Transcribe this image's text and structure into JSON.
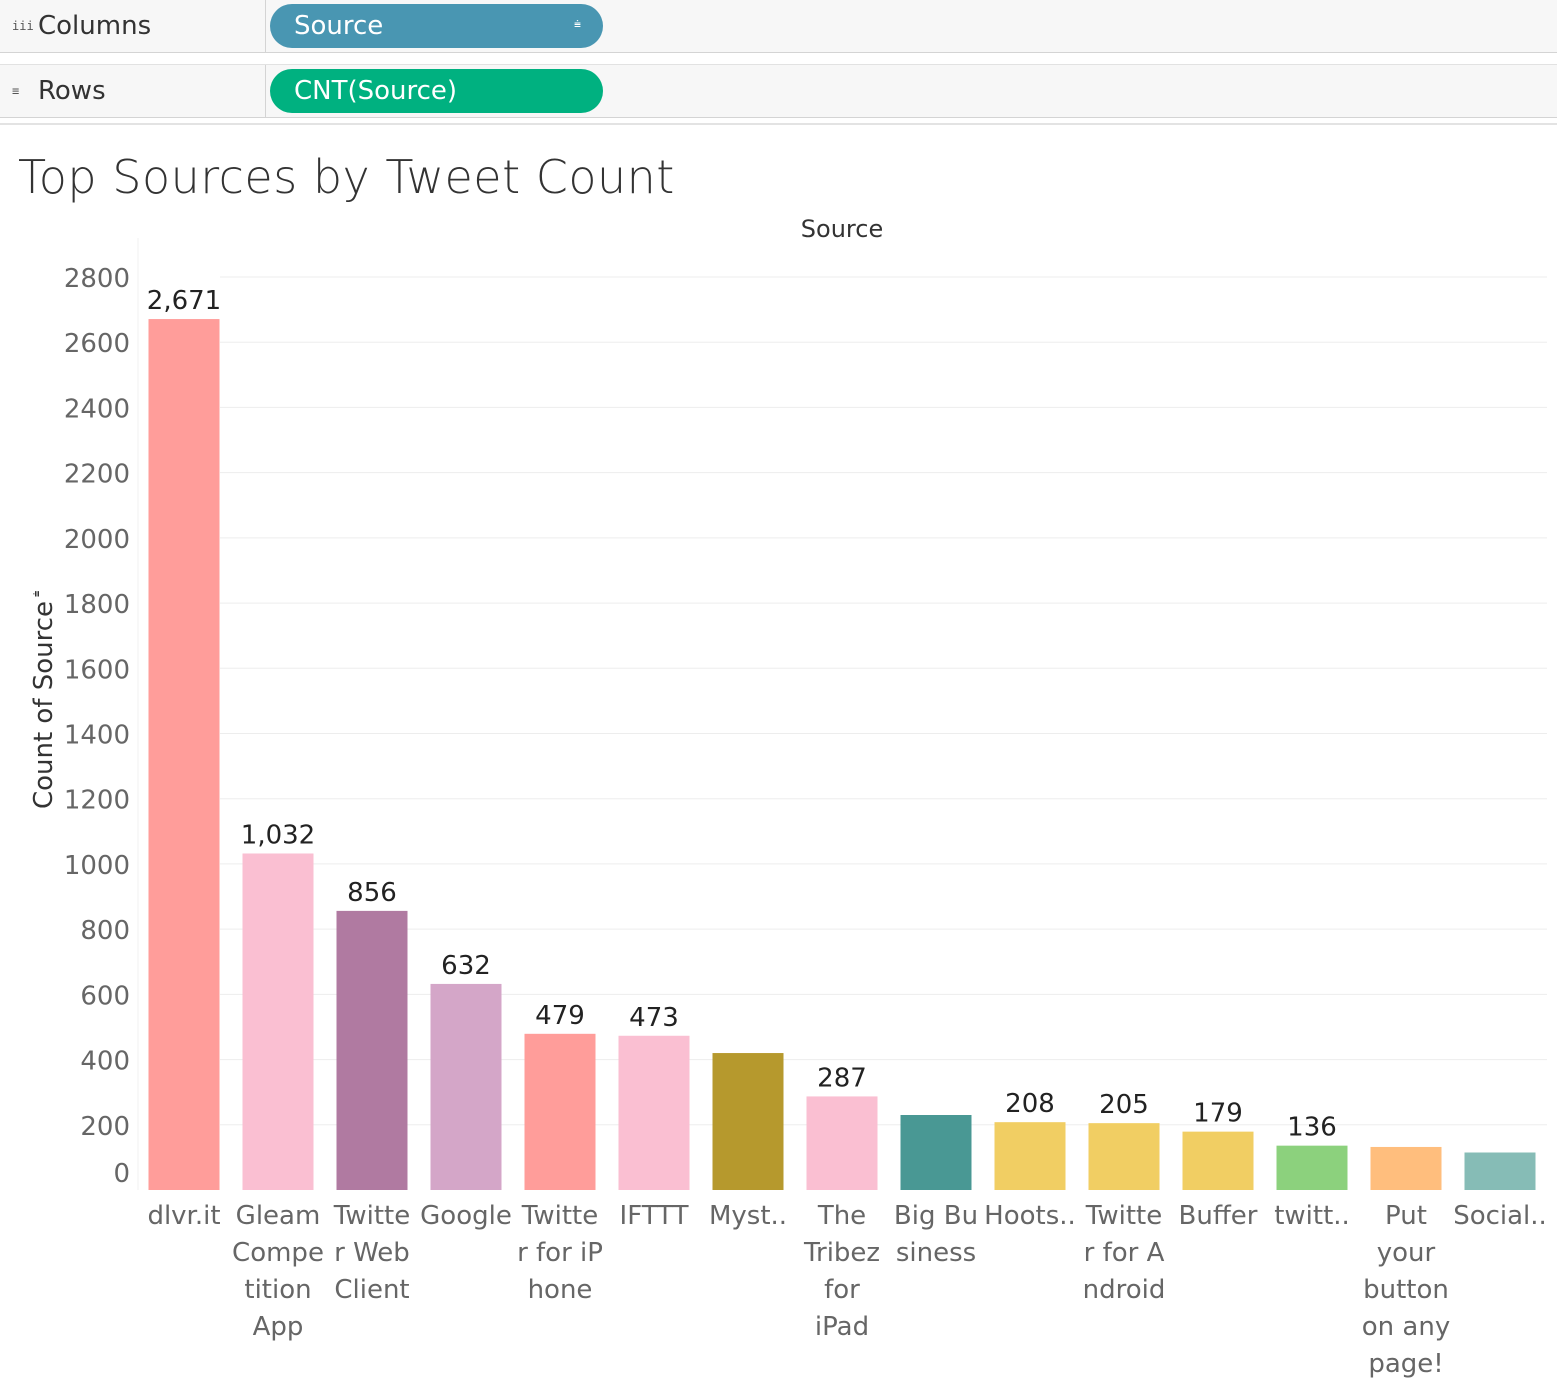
{
  "shelves": {
    "columns": {
      "label": "Columns",
      "icon": "iii",
      "pill": "Source",
      "pill_icon": "⩧"
    },
    "rows": {
      "label": "Rows",
      "icon": "≡",
      "pill": "CNT(Source)"
    }
  },
  "colors": {
    "source_pill": "#4996b2",
    "cnt_pill": "#00b180"
  },
  "chart_data": {
    "type": "bar",
    "title": "Top Sources by Tweet Count",
    "column_header": "Source",
    "ylabel": "Count of Source",
    "ylabel_icon": "⩧",
    "ylim": [
      0,
      2800
    ],
    "yticks": [
      0,
      200,
      400,
      600,
      800,
      1000,
      1200,
      1400,
      1600,
      1800,
      2000,
      2200,
      2400,
      2600,
      2800
    ],
    "grid": true,
    "categories": [
      "dlvr.it",
      "Gleam Competition App",
      "Twitter Web Client",
      "Google",
      "Twitter for iPhone",
      "IFTTT",
      "Myst..",
      "The Tribez for iPad",
      "Big Business",
      "Hoots..",
      "Twitter for Android",
      "Buffer",
      "twitt..",
      "Put your button on any page!",
      "Social.."
    ],
    "category_label_lines": [
      [
        "dlvr.it"
      ],
      [
        "Gleam",
        "Compe",
        "tition",
        "App"
      ],
      [
        "Twitte",
        "r Web",
        "Client"
      ],
      [
        "Google"
      ],
      [
        "Twitte",
        "r for iP",
        "hone"
      ],
      [
        "IFTTT"
      ],
      [
        "Myst.."
      ],
      [
        "The",
        "Tribez",
        "for",
        "iPad"
      ],
      [
        "Big Bu",
        "siness"
      ],
      [
        "Hoots.."
      ],
      [
        "Twitte",
        "r for A",
        "ndroid"
      ],
      [
        "Buffer"
      ],
      [
        "twitt.."
      ],
      [
        "Put",
        "your",
        "button",
        "on any",
        "page!"
      ],
      [
        "Social.."
      ]
    ],
    "values": [
      2671,
      1032,
      856,
      632,
      479,
      473,
      420,
      287,
      230,
      208,
      205,
      179,
      136,
      132,
      115
    ],
    "data_labels": [
      "2,671",
      "1,032",
      "856",
      "632",
      "479",
      "473",
      "",
      "287",
      "",
      "208",
      "205",
      "179",
      "136",
      "",
      ""
    ],
    "bar_colors": [
      "#ff9d9a",
      "#fabfd2",
      "#b07aa1",
      "#d4a6c8",
      "#ff9d9a",
      "#fabfd2",
      "#b6992d",
      "#fabfd2",
      "#499894",
      "#f1ce63",
      "#f1ce63",
      "#f1ce63",
      "#8cd17d",
      "#ffbe7d",
      "#86bcb6"
    ]
  }
}
